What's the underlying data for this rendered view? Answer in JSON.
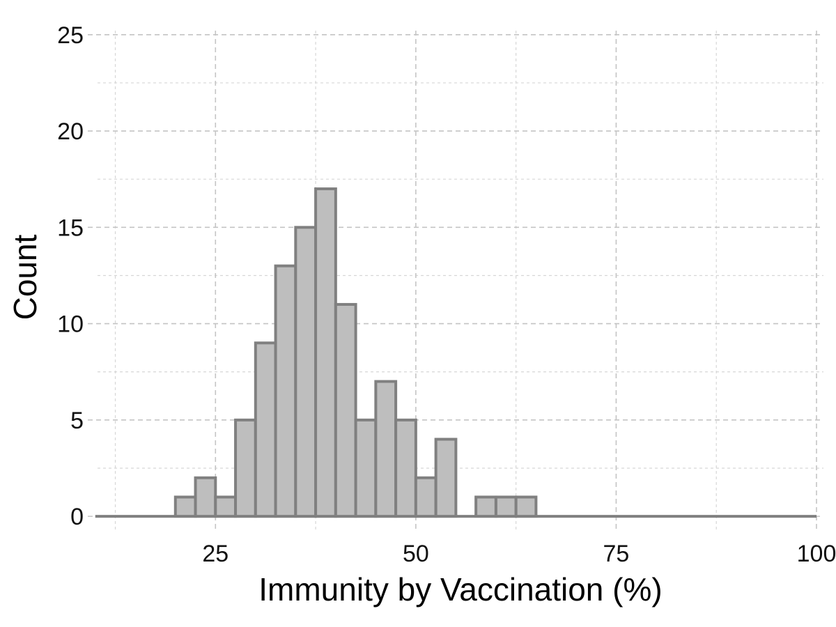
{
  "chart_data": {
    "type": "bar",
    "chart_kind": "histogram",
    "xlabel": "Immunity by Vaccination (%)",
    "ylabel": "Count",
    "xlim": [
      7.5,
      100
    ],
    "ylim": [
      -0.9,
      25.5
    ],
    "x_ticks": [
      25,
      50,
      75,
      100
    ],
    "x_tick_labels": [
      "25",
      "50",
      "75",
      "100"
    ],
    "x_minor_ticks": [
      12.5,
      37.5,
      62.5,
      87.5
    ],
    "y_ticks": [
      0,
      5,
      10,
      15,
      20,
      25
    ],
    "y_tick_labels": [
      "0",
      "5",
      "10",
      "15",
      "20",
      "25"
    ],
    "y_minor_ticks": [
      2.5,
      7.5,
      12.5,
      17.5,
      22.5
    ],
    "bin_width": 2.5,
    "bin_starts": [
      20,
      22.5,
      25,
      27.5,
      30,
      32.5,
      35,
      37.5,
      40,
      42.5,
      45,
      47.5,
      50,
      52.5,
      55,
      57.5,
      60,
      62.5
    ],
    "counts": [
      1,
      2,
      1,
      5,
      9,
      13,
      15,
      17,
      11,
      5,
      7,
      5,
      2,
      4,
      0,
      1,
      1,
      1
    ],
    "baseline_range": [
      10,
      100
    ],
    "grid": true,
    "colors": {
      "bar_fill": "#bebebe",
      "bar_edge": "#808080"
    }
  }
}
